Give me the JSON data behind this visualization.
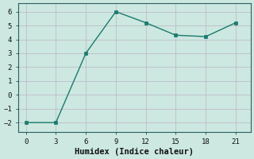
{
  "x": [
    0,
    3,
    6,
    9,
    12,
    15,
    18,
    21
  ],
  "y": [
    -2.0,
    -2.0,
    3.0,
    6.0,
    5.2,
    4.3,
    4.2,
    5.2
  ],
  "line_color": "#1a7a6e",
  "marker": "s",
  "marker_size": 2.5,
  "xlabel": "Humidex (Indice chaleur)",
  "xlabel_fontsize": 7.5,
  "background_color": "#cce8e0",
  "grid_color": "#c0b8c8",
  "spine_color": "#2a6060",
  "xticks": [
    0,
    3,
    6,
    9,
    12,
    15,
    18,
    21
  ],
  "yticks": [
    -2,
    -1,
    0,
    1,
    2,
    3,
    4,
    5,
    6
  ],
  "ylim": [
    -2.7,
    6.6
  ],
  "xlim": [
    -0.8,
    22.5
  ]
}
